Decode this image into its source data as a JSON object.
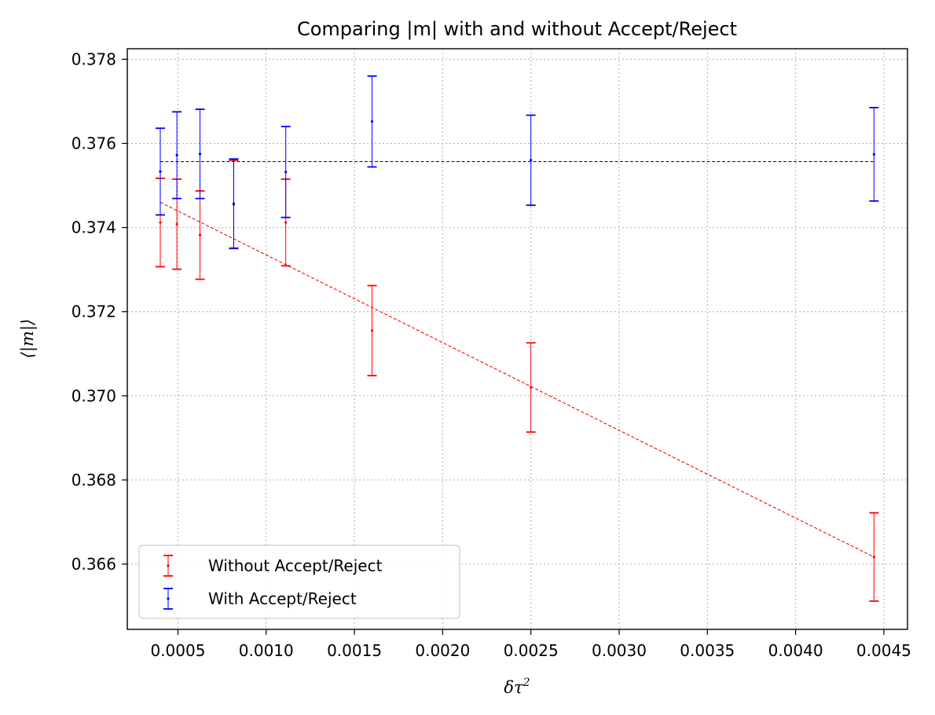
{
  "chart_data": {
    "type": "scatter",
    "title": "Comparing |m| with and without Accept/Reject",
    "xlabel_base": "δτ",
    "xlabel_sup": "2",
    "ylabel": "⟨|m|⟩",
    "xlim": [
      0.000213,
      0.004634
    ],
    "ylim": [
      0.36445,
      0.37825
    ],
    "x_ticks": [
      0.0005,
      0.001,
      0.0015,
      0.002,
      0.0025,
      0.003,
      0.0035,
      0.004,
      0.0045
    ],
    "x_tick_labels": [
      "0.0005",
      "0.0010",
      "0.0015",
      "0.0020",
      "0.0025",
      "0.0030",
      "0.0035",
      "0.0040",
      "0.0045"
    ],
    "y_ticks": [
      0.366,
      0.368,
      0.37,
      0.372,
      0.374,
      0.376,
      0.378
    ],
    "y_tick_labels": [
      "0.366",
      "0.368",
      "0.370",
      "0.372",
      "0.374",
      "0.376",
      "0.378"
    ],
    "grid": true,
    "legend_position": "lower-left",
    "series": [
      {
        "name": "Without Accept/Reject",
        "color": "#ff0000",
        "x": [
          0.0004,
          0.000494,
          0.000625,
          0.000816,
          0.001111,
          0.0016,
          0.0025,
          0.004444
        ],
        "y": [
          0.37412,
          0.37408,
          0.37382,
          0.37455,
          0.37412,
          0.37155,
          0.3702,
          0.36617
        ],
        "yerr": [
          0.00105,
          0.00107,
          0.00105,
          0.00105,
          0.00103,
          0.00107,
          0.00106,
          0.00105
        ],
        "fit": {
          "x": [
            0.0004,
            0.004444
          ],
          "y": [
            0.3746,
            0.36617
          ]
        }
      },
      {
        "name": "With Accept/Reject",
        "color": "#0000ff",
        "x": [
          0.0004,
          0.000494,
          0.000625,
          0.000816,
          0.001111,
          0.0016,
          0.0025,
          0.004444
        ],
        "y": [
          0.37533,
          0.37572,
          0.37575,
          0.37457,
          0.37532,
          0.37652,
          0.3756,
          0.37574
        ],
        "yerr": [
          0.00103,
          0.00103,
          0.00106,
          0.00106,
          0.00108,
          0.00108,
          0.00107,
          0.00111
        ],
        "fit": {
          "x": [
            0.0004,
            0.004444
          ],
          "y": [
            0.37557,
            0.37557
          ]
        }
      }
    ]
  }
}
